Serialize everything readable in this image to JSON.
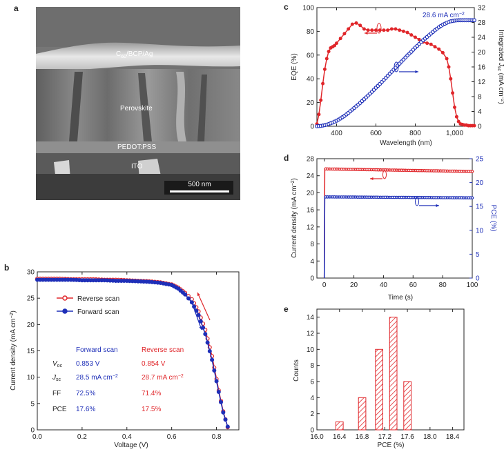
{
  "colors": {
    "red": "#e0262a",
    "blue": "#1e2fb8",
    "axis": "#222222",
    "hatch": "#e0262a"
  },
  "panel_a": {
    "letter": "a",
    "layers": {
      "top": "C60/BCP/Ag",
      "top_prefix": "C",
      "top_sub": "60",
      "top_suffix": "/BCP/Ag",
      "perovskite": "Perovskite",
      "pedot": "PEDOT:PSS",
      "ito": "ITO"
    },
    "scale_bar": "500 nm"
  },
  "chart_data": [
    {
      "id": "c",
      "type": "line",
      "letter": "c",
      "xlabel": "Wavelength (nm)",
      "ylabel": "EQE (%)",
      "y2label": "Integrated J sc (mA cm−2)",
      "y2label_parts": {
        "pre": "Integrated ",
        "J": "J",
        "sub": "sc",
        "post": " (mA cm",
        "sup": "−2",
        "end": ")"
      },
      "xlim": [
        300,
        1100
      ],
      "ylim": [
        0,
        100
      ],
      "y2lim": [
        0,
        32
      ],
      "xticks": [
        400,
        600,
        800,
        1000
      ],
      "xtick_labels": [
        "400",
        "600",
        "800",
        "1,000"
      ],
      "yticks": [
        0,
        20,
        40,
        60,
        80,
        100
      ],
      "y2ticks": [
        0,
        4,
        8,
        12,
        16,
        20,
        24,
        28,
        32
      ],
      "annotation": "28.6 mA cm−2",
      "annotation_parts": {
        "main": "28.6 mA cm",
        "sup": "−2"
      },
      "series": [
        {
          "name": "EQE",
          "axis": "left",
          "color": "red",
          "x": [
            300,
            310,
            320,
            330,
            340,
            350,
            360,
            370,
            380,
            390,
            400,
            420,
            440,
            460,
            480,
            500,
            520,
            540,
            560,
            580,
            600,
            620,
            640,
            660,
            680,
            700,
            720,
            740,
            760,
            780,
            800,
            820,
            840,
            860,
            880,
            900,
            920,
            940,
            960,
            970,
            980,
            990,
            1000,
            1010,
            1020,
            1030,
            1040,
            1050,
            1060,
            1070,
            1080,
            1090,
            1100
          ],
          "y": [
            2,
            10,
            22,
            36,
            48,
            57,
            63,
            66,
            67,
            68,
            70,
            74,
            78,
            82,
            86,
            87,
            85,
            82,
            81,
            81,
            81,
            81,
            81,
            81,
            82,
            82,
            81,
            80,
            79,
            77,
            75,
            73,
            71,
            70,
            69,
            67,
            65,
            62,
            57,
            50,
            40,
            28,
            16,
            8,
            4,
            2,
            1.5,
            1,
            1,
            0.5,
            0.5,
            0.5,
            0.5
          ]
        },
        {
          "name": "Integrated Jsc",
          "axis": "right",
          "color": "blue",
          "x": [
            300,
            320,
            340,
            360,
            380,
            400,
            420,
            440,
            460,
            480,
            500,
            520,
            540,
            560,
            580,
            600,
            620,
            640,
            660,
            680,
            700,
            720,
            740,
            760,
            780,
            800,
            820,
            840,
            860,
            880,
            900,
            920,
            940,
            960,
            980,
            1000,
            1020,
            1040,
            1060,
            1080,
            1100
          ],
          "y": [
            0,
            0.1,
            0.3,
            0.6,
            1.0,
            1.5,
            2.1,
            2.8,
            3.6,
            4.5,
            5.4,
            6.3,
            7.3,
            8.3,
            9.3,
            10.4,
            11.4,
            12.5,
            13.6,
            14.7,
            15.8,
            16.9,
            18.0,
            19.1,
            20.1,
            21.2,
            22.2,
            23.2,
            24.1,
            25.0,
            25.9,
            26.7,
            27.4,
            27.9,
            28.3,
            28.5,
            28.6,
            28.6,
            28.6,
            28.6,
            28.6
          ]
        }
      ]
    },
    {
      "id": "d",
      "type": "line",
      "letter": "d",
      "xlabel": "Time (s)",
      "ylabel": "Current density (mA cm−2)",
      "ylabel_parts": {
        "main": "Current density (mA cm",
        "sup": "−2",
        "end": ")"
      },
      "y2label": "PCE (%)",
      "xlim": [
        -5,
        100
      ],
      "ylim": [
        0,
        28
      ],
      "y2lim": [
        0,
        25
      ],
      "xticks": [
        0,
        20,
        40,
        60,
        80,
        100
      ],
      "yticks": [
        0,
        4,
        8,
        12,
        16,
        20,
        24,
        28
      ],
      "y2ticks": [
        0,
        5,
        10,
        15,
        20,
        25
      ],
      "series": [
        {
          "name": "Current density",
          "axis": "left",
          "color": "red",
          "x": [
            0,
            0.3,
            1,
            100
          ],
          "y": [
            0,
            25.7,
            25.6,
            25.0
          ]
        },
        {
          "name": "PCE",
          "axis": "right",
          "color": "blue",
          "x": [
            0,
            0.3,
            1,
            100
          ],
          "y": [
            0,
            17.0,
            17.0,
            16.8
          ]
        }
      ]
    },
    {
      "id": "b",
      "type": "line",
      "letter": "b",
      "xlabel": "Voltage (V)",
      "ylabel": "Current density (mA cm−2)",
      "ylabel_parts": {
        "main": "Current density (mA cm",
        "sup": "−2",
        "end": ")"
      },
      "xlim": [
        0,
        0.9
      ],
      "ylim": [
        0,
        30
      ],
      "xticks": [
        0.0,
        0.2,
        0.4,
        0.6,
        0.8
      ],
      "xtick_labels": [
        "0.0",
        "0.2",
        "0.4",
        "0.6",
        "0.8"
      ],
      "yticks": [
        0,
        5,
        10,
        15,
        20,
        25,
        30
      ],
      "legend": [
        "Reverse scan",
        "Forward scan"
      ],
      "series": [
        {
          "name": "Reverse scan",
          "color": "red",
          "x": [
            0,
            0.05,
            0.1,
            0.15,
            0.2,
            0.25,
            0.3,
            0.35,
            0.4,
            0.45,
            0.5,
            0.55,
            0.6,
            0.63,
            0.66,
            0.69,
            0.72,
            0.75,
            0.78,
            0.81,
            0.83,
            0.85
          ],
          "y": [
            28.7,
            28.7,
            28.7,
            28.6,
            28.6,
            28.6,
            28.5,
            28.5,
            28.4,
            28.3,
            28.2,
            28.0,
            27.6,
            27.0,
            26.0,
            24.8,
            22.5,
            19.0,
            14.0,
            7.5,
            3.5,
            0.5
          ]
        },
        {
          "name": "Forward scan",
          "color": "blue",
          "x": [
            0,
            0.05,
            0.1,
            0.15,
            0.2,
            0.25,
            0.3,
            0.35,
            0.4,
            0.45,
            0.5,
            0.55,
            0.6,
            0.63,
            0.66,
            0.69,
            0.72,
            0.75,
            0.78,
            0.81,
            0.83,
            0.85
          ],
          "y": [
            28.5,
            28.5,
            28.5,
            28.5,
            28.4,
            28.4,
            28.4,
            28.3,
            28.3,
            28.2,
            28.1,
            27.9,
            27.5,
            26.8,
            25.7,
            24.2,
            21.8,
            18.2,
            13.3,
            7.2,
            3.3,
            0.6
          ]
        }
      ],
      "table": {
        "headers": [
          "Forward scan",
          "Reverse scan"
        ],
        "rows": [
          {
            "label": "Voc",
            "label_main": "V",
            "label_sub": "oc",
            "forward": "0.853 V",
            "reverse": "0.854 V"
          },
          {
            "label": "Jsc",
            "label_main": "J",
            "label_sub": "sc",
            "forward": "28.5 mA cm−2",
            "reverse": "28.7 mA cm−2",
            "forward_main": "28.5 mA cm",
            "reverse_main": "28.7 mA cm",
            "sup": "−2"
          },
          {
            "label": "FF",
            "label_main": "FF",
            "label_sub": "",
            "forward": "72.5%",
            "reverse": "71.4%"
          },
          {
            "label": "PCE",
            "label_main": "PCE",
            "label_sub": "",
            "forward": "17.6%",
            "reverse": "17.5%"
          }
        ]
      }
    },
    {
      "id": "e",
      "type": "bar",
      "letter": "e",
      "xlabel": "PCE (%)",
      "ylabel": "Counts",
      "xlim": [
        16.0,
        18.6
      ],
      "ylim": [
        0,
        15
      ],
      "xticks": [
        16.0,
        16.4,
        16.8,
        17.2,
        17.6,
        18.0,
        18.4
      ],
      "xtick_labels": [
        "16.0",
        "16.4",
        "16.8",
        "17.2",
        "17.6",
        "18.0",
        "18.4"
      ],
      "yticks": [
        0,
        2,
        4,
        6,
        8,
        10,
        12,
        14
      ],
      "categories": [
        16.4,
        16.8,
        17.1,
        17.35,
        17.6
      ],
      "values": [
        1,
        4,
        10,
        14,
        6
      ],
      "bar_width": 0.13
    }
  ]
}
